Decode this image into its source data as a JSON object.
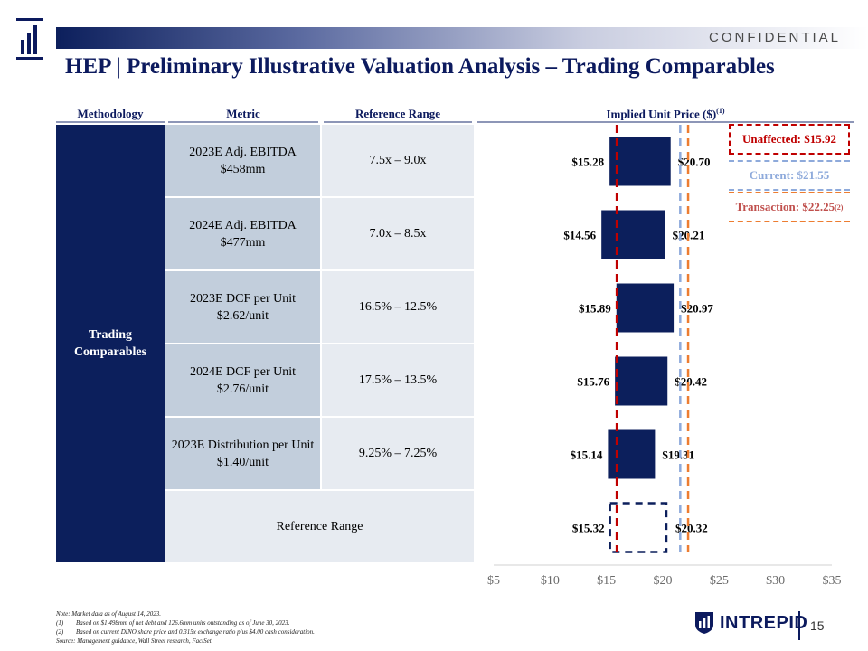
{
  "header": {
    "confidential": "CONFIDENTIAL",
    "title": "HEP | Preliminary Illustrative Valuation Analysis – Trading Comparables"
  },
  "columns": {
    "methodology": "Methodology",
    "metric": "Metric",
    "reference_range": "Reference Range",
    "implied_price": "Implied Unit Price ($)",
    "implied_price_sup": "(1)"
  },
  "methodology_label": "Trading Comparables",
  "rows": [
    {
      "metric_line1": "2023E Adj. EBITDA",
      "metric_line2": "$458mm",
      "range": "7.5x – 9.0x"
    },
    {
      "metric_line1": "2024E Adj. EBITDA",
      "metric_line2": "$477mm",
      "range": "7.0x – 8.5x"
    },
    {
      "metric_line1": "2023E DCF per Unit",
      "metric_line2": "$2.62/unit",
      "range": "16.5% – 12.5%"
    },
    {
      "metric_line1": "2024E DCF per Unit",
      "metric_line2": "$2.76/unit",
      "range": "17.5% – 13.5%"
    },
    {
      "metric_line1": "2023E Distribution per Unit",
      "metric_line2": "$1.40/unit",
      "range": "9.25% – 7.25%"
    }
  ],
  "reference_range_row_label": "Reference Range",
  "legend": {
    "unaffected": "Unaffected: $15.92",
    "current": "Current: $21.55",
    "transaction": "Transaction: $22.25",
    "transaction_sup": "(2)"
  },
  "chart_data": {
    "type": "bar",
    "orientation": "horizontal-floating",
    "categories": [
      "2023E Adj. EBITDA",
      "2024E Adj. EBITDA",
      "2023E DCF per Unit",
      "2024E DCF per Unit",
      "2023E Distribution per Unit",
      "Reference Range"
    ],
    "low_labels": [
      "$15.28",
      "$14.56",
      "$15.89",
      "$15.76",
      "$15.14",
      "$15.32"
    ],
    "high_labels": [
      "$20.70",
      "$20.21",
      "$20.97",
      "$20.42",
      "$19.31",
      "$20.32"
    ],
    "lows": [
      15.28,
      14.56,
      15.89,
      15.76,
      15.14,
      15.32
    ],
    "highs": [
      20.7,
      20.21,
      20.97,
      20.42,
      19.31,
      20.32
    ],
    "xlim": [
      5,
      35
    ],
    "xticks": [
      "$5",
      "$10",
      "$15",
      "$20",
      "$25",
      "$30",
      "$35"
    ],
    "xtick_values": [
      5,
      10,
      15,
      20,
      25,
      30,
      35
    ],
    "reference_lines": [
      {
        "value": 15.92,
        "color": "#c00000"
      },
      {
        "value": 21.55,
        "color": "#8eaadb"
      },
      {
        "value": 22.25,
        "color": "#ed7d31"
      }
    ],
    "bar_color": "#0c1f5c",
    "last_row_dashed": true
  },
  "footnotes": {
    "note": "Note: Market data as of August 14, 2023.",
    "fn1_num": "(1)",
    "fn1": "Based on $1,498mm of net debt and 126.6mm units outstanding as of June 30, 2023.",
    "fn2_num": "(2)",
    "fn2": "Based on current DINO share price and 0.315x exchange ratio plus $4.00 cash consideration.",
    "source": "Source: Management guidance, Wall Street research, FactSet."
  },
  "brand": {
    "name": "INTREPID",
    "page": "15"
  }
}
